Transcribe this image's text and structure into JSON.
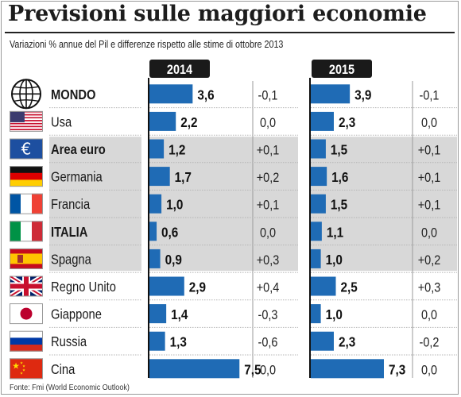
{
  "title": "Previsioni sulle maggiori economie",
  "subtitle": "Variazioni % annue del Pil e differenze rispetto alle stime di ottobre 2013",
  "source": "Fonte: Fmi (World Economic Outlook)",
  "colors": {
    "bar": "#1f6bb5",
    "shade": "#d8d8d8",
    "header_bg": "#1a1a1a",
    "header_text": "#ffffff"
  },
  "chart_data": {
    "type": "bar",
    "panels": [
      {
        "year": "2014",
        "xlim": [
          0,
          8
        ]
      },
      {
        "year": "2015",
        "xlim": [
          0,
          8
        ]
      }
    ],
    "rows": [
      {
        "name": "MONDO",
        "bold": true,
        "shaded": false,
        "icon": "globe-icon",
        "v2014": "3,6",
        "d2014": "-0,1",
        "v2015": "3,9",
        "d2015": "-0,1"
      },
      {
        "name": "Usa",
        "bold": false,
        "shaded": false,
        "icon": "flag-usa-icon",
        "v2014": "2,2",
        "d2014": "0,0",
        "v2015": "2,3",
        "d2015": "0,0"
      },
      {
        "name": "Area euro",
        "bold": true,
        "shaded": true,
        "icon": "flag-eu-icon",
        "v2014": "1,2",
        "d2014": "+0,1",
        "v2015": "1,5",
        "d2015": "+0,1"
      },
      {
        "name": "Germania",
        "bold": false,
        "shaded": true,
        "icon": "flag-germany-icon",
        "v2014": "1,7",
        "d2014": "+0,2",
        "v2015": "1,6",
        "d2015": "+0,1"
      },
      {
        "name": "Francia",
        "bold": false,
        "shaded": true,
        "icon": "flag-france-icon",
        "v2014": "1,0",
        "d2014": "+0,1",
        "v2015": "1,5",
        "d2015": "+0,1"
      },
      {
        "name": "ITALIA",
        "bold": true,
        "shaded": true,
        "icon": "flag-italy-icon",
        "v2014": "0,6",
        "d2014": "0,0",
        "v2015": "1,1",
        "d2015": "0,0"
      },
      {
        "name": "Spagna",
        "bold": false,
        "shaded": true,
        "icon": "flag-spain-icon",
        "v2014": "0,9",
        "d2014": "+0,3",
        "v2015": "1,0",
        "d2015": "+0,2"
      },
      {
        "name": "Regno Unito",
        "bold": false,
        "shaded": false,
        "icon": "flag-uk-icon",
        "v2014": "2,9",
        "d2014": "+0,4",
        "v2015": "2,5",
        "d2015": "+0,3"
      },
      {
        "name": "Giappone",
        "bold": false,
        "shaded": false,
        "icon": "flag-japan-icon",
        "v2014": "1,4",
        "d2014": "-0,3",
        "v2015": "1,0",
        "d2015": "0,0"
      },
      {
        "name": "Russia",
        "bold": false,
        "shaded": false,
        "icon": "flag-russia-icon",
        "v2014": "1,3",
        "d2014": "-0,6",
        "v2015": "2,3",
        "d2015": "-0,2"
      },
      {
        "name": "Cina",
        "bold": false,
        "shaded": false,
        "icon": "flag-china-icon",
        "v2014": "7,5",
        "d2014": "0,0",
        "v2015": "7,3",
        "d2015": "0,0"
      }
    ]
  }
}
